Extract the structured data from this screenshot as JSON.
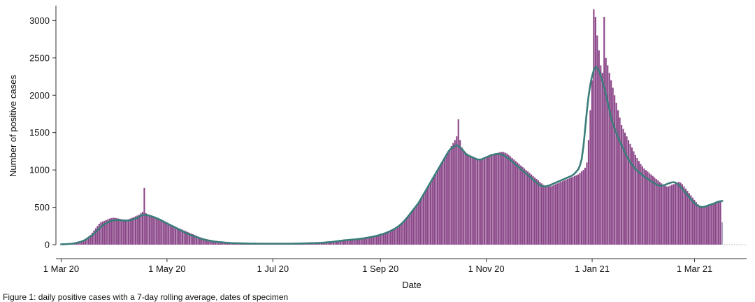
{
  "chart_data": {
    "type": "bar",
    "xlabel": "Date",
    "ylabel": "Number of positive cases",
    "x_range": [
      "2020-02-27",
      "2021-03-31"
    ],
    "ylim": [
      0,
      3200
    ],
    "y_ticks": [
      0,
      500,
      1000,
      1500,
      2000,
      2500,
      3000
    ],
    "x_ticks": [
      {
        "date": "2020-03-01",
        "label": "1 Mar 20"
      },
      {
        "date": "2020-05-01",
        "label": "1 May 20"
      },
      {
        "date": "2020-07-01",
        "label": "1 Jul 20"
      },
      {
        "date": "2020-09-01",
        "label": "1 Sep 20"
      },
      {
        "date": "2020-11-01",
        "label": "1 Nov 20"
      },
      {
        "date": "2021-01-01",
        "label": "1 Jan 21"
      },
      {
        "date": "2021-03-01",
        "label": "1 Mar 21"
      }
    ],
    "grid": false,
    "colors": {
      "bars": "#8b4789",
      "incomplete_bars": "#b0a7c4",
      "average_line": "#3a7d7a",
      "baseline": "#aaaaaa",
      "axis": "#333333"
    },
    "daily_cases": {
      "start_date": "2020-03-01",
      "values": [
        5,
        5,
        6,
        8,
        9,
        12,
        14,
        18,
        22,
        28,
        35,
        42,
        50,
        60,
        75,
        95,
        110,
        130,
        160,
        190,
        220,
        250,
        280,
        300,
        310,
        320,
        330,
        340,
        350,
        355,
        360,
        360,
        355,
        350,
        345,
        340,
        338,
        336,
        335,
        340,
        350,
        360,
        370,
        380,
        390,
        400,
        420,
        440,
        760,
        420,
        400,
        390,
        380,
        370,
        360,
        350,
        340,
        330,
        320,
        310,
        300,
        290,
        280,
        270,
        260,
        250,
        240,
        230,
        220,
        210,
        200,
        190,
        180,
        170,
        160,
        150,
        140,
        130,
        120,
        110,
        100,
        92,
        85,
        78,
        72,
        66,
        60,
        55,
        50,
        46,
        42,
        38,
        35,
        32,
        30,
        28,
        26,
        24,
        22,
        20,
        20,
        19,
        19,
        18,
        18,
        17,
        17,
        16,
        16,
        15,
        15,
        15,
        15,
        14,
        14,
        14,
        14,
        14,
        14,
        14,
        14,
        14,
        14,
        14,
        14,
        14,
        14,
        14,
        14,
        14,
        14,
        14,
        14,
        14,
        15,
        15,
        15,
        16,
        16,
        17,
        17,
        18,
        18,
        19,
        20,
        20,
        21,
        22,
        23,
        24,
        25,
        27,
        29,
        31,
        33,
        35,
        37,
        40,
        43,
        46,
        49,
        52,
        55,
        58,
        60,
        62,
        64,
        66,
        68,
        70,
        72,
        75,
        78,
        81,
        84,
        88,
        92,
        96,
        100,
        105,
        110,
        115,
        120,
        126,
        133,
        140,
        148,
        156,
        165,
        175,
        186,
        198,
        210,
        224,
        240,
        258,
        278,
        300,
        325,
        352,
        380,
        410,
        440,
        470,
        500,
        530,
        560,
        600,
        640,
        680,
        720,
        760,
        800,
        840,
        880,
        920,
        960,
        1000,
        1040,
        1080,
        1120,
        1160,
        1200,
        1240,
        1280,
        1320,
        1360,
        1400,
        1450,
        1680,
        1400,
        1300,
        1260,
        1240,
        1220,
        1200,
        1190,
        1180,
        1170,
        1160,
        1150,
        1140,
        1140,
        1140,
        1150,
        1160,
        1170,
        1180,
        1190,
        1200,
        1210,
        1220,
        1230,
        1240,
        1240,
        1240,
        1230,
        1220,
        1200,
        1180,
        1160,
        1140,
        1120,
        1100,
        1080,
        1060,
        1040,
        1020,
        1000,
        980,
        960,
        940,
        920,
        900,
        880,
        860,
        840,
        820,
        800,
        790,
        780,
        780,
        780,
        790,
        800,
        810,
        820,
        830,
        840,
        850,
        860,
        870,
        880,
        890,
        900,
        910,
        920,
        930,
        940,
        960,
        980,
        1000,
        1030,
        1100,
        1400,
        1800,
        2200,
        3150,
        3050,
        2800,
        2600,
        2400,
        2300,
        3050,
        2500,
        2400,
        2300,
        2200,
        2100,
        2000,
        1900,
        1800,
        1700,
        1600,
        1550,
        1500,
        1450,
        1400,
        1350,
        1300,
        1250,
        1200,
        1160,
        1120,
        1080,
        1050,
        1020,
        1000,
        980,
        960,
        940,
        920,
        900,
        880,
        860,
        840,
        820,
        800,
        790,
        780,
        780,
        790,
        800,
        810,
        820,
        830,
        840,
        830,
        810,
        780,
        750,
        720,
        690,
        660,
        630,
        600,
        570,
        540,
        520,
        510,
        500,
        500,
        510,
        520,
        530,
        540,
        550,
        560,
        570,
        580,
        580,
        300
      ]
    },
    "average_line": {
      "start_date": "2020-03-01",
      "values": [
        5,
        5,
        6,
        8,
        9,
        11,
        13,
        16,
        20,
        25,
        31,
        38,
        45,
        54,
        66,
        80,
        96,
        112,
        130,
        150,
        172,
        195,
        218,
        240,
        258,
        274,
        288,
        300,
        310,
        318,
        324,
        328,
        330,
        330,
        328,
        326,
        324,
        322,
        322,
        324,
        328,
        334,
        342,
        352,
        362,
        374,
        388,
        396,
        400,
        398,
        394,
        388,
        380,
        372,
        364,
        354,
        344,
        334,
        322,
        310,
        298,
        286,
        274,
        262,
        250,
        238,
        226,
        214,
        202,
        190,
        178,
        167,
        156,
        145,
        135,
        126,
        117,
        108,
        100,
        92,
        85,
        78,
        72,
        66,
        61,
        56,
        52,
        48,
        44,
        41,
        38,
        35,
        33,
        31,
        29,
        27,
        25,
        24,
        22,
        21,
        20,
        19,
        19,
        18,
        18,
        17,
        17,
        16,
        16,
        15,
        15,
        15,
        15,
        14,
        14,
        14,
        14,
        14,
        14,
        14,
        14,
        14,
        14,
        14,
        14,
        14,
        14,
        14,
        14,
        14,
        14,
        14,
        14,
        14,
        15,
        15,
        15,
        16,
        16,
        17,
        17,
        18,
        18,
        19,
        20,
        20,
        21,
        22,
        23,
        24,
        25,
        27,
        29,
        31,
        33,
        35,
        37,
        40,
        43,
        46,
        49,
        52,
        55,
        58,
        60,
        62,
        64,
        66,
        68,
        70,
        72,
        75,
        78,
        81,
        84,
        88,
        92,
        96,
        100,
        105,
        110,
        115,
        120,
        126,
        133,
        140,
        148,
        156,
        165,
        175,
        186,
        198,
        210,
        224,
        240,
        258,
        278,
        300,
        325,
        352,
        380,
        410,
        440,
        470,
        500,
        530,
        560,
        600,
        640,
        680,
        720,
        760,
        800,
        840,
        880,
        920,
        960,
        1000,
        1040,
        1080,
        1120,
        1160,
        1200,
        1240,
        1270,
        1290,
        1310,
        1320,
        1330,
        1320,
        1300,
        1280,
        1250,
        1220,
        1200,
        1190,
        1180,
        1170,
        1160,
        1150,
        1140,
        1140,
        1140,
        1150,
        1160,
        1170,
        1180,
        1190,
        1200,
        1205,
        1210,
        1215,
        1215,
        1210,
        1205,
        1195,
        1180,
        1165,
        1150,
        1130,
        1110,
        1090,
        1070,
        1050,
        1030,
        1010,
        990,
        970,
        950,
        930,
        910,
        890,
        870,
        850,
        830,
        810,
        795,
        785,
        780,
        780,
        785,
        790,
        800,
        810,
        820,
        830,
        840,
        850,
        860,
        870,
        880,
        890,
        900,
        910,
        920,
        935,
        955,
        980,
        1010,
        1060,
        1150,
        1320,
        1560,
        1800,
        2000,
        2150,
        2260,
        2340,
        2380,
        2360,
        2320,
        2260,
        2180,
        2100,
        2000,
        1900,
        1800,
        1700,
        1620,
        1550,
        1490,
        1430,
        1380,
        1330,
        1280,
        1230,
        1180,
        1140,
        1100,
        1070,
        1040,
        1010,
        990,
        970,
        950,
        930,
        910,
        895,
        880,
        865,
        850,
        835,
        820,
        805,
        795,
        790,
        790,
        795,
        800,
        810,
        820,
        828,
        834,
        836,
        830,
        816,
        796,
        772,
        746,
        718,
        690,
        662,
        634,
        606,
        580,
        556,
        536,
        520,
        510,
        505,
        505,
        510,
        518,
        526,
        534,
        542,
        550,
        560,
        570,
        578,
        582,
        585
      ]
    }
  },
  "caption": "Figure 1: daily positive cases with a 7-day rolling average, dates of specimen"
}
